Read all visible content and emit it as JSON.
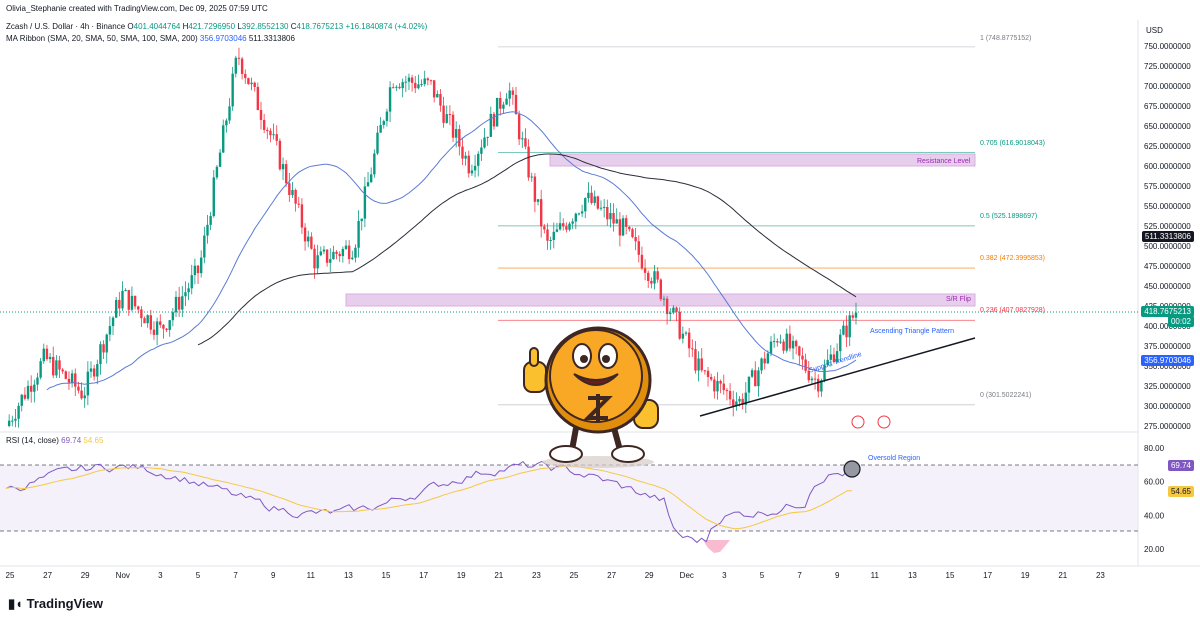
{
  "header": {
    "attribution": "Olivia_Stephanie created with TradingView.com, Dec 09, 2025 07:59 UTC",
    "symbol": "Zcash / U.S. Dollar · 4h · Binance",
    "ohlc": {
      "o_label": "O",
      "o": "401.4044764",
      "h_label": "H",
      "h": "421.7296950",
      "l_label": "L",
      "l": "392.8552130",
      "c_label": "C",
      "c": "418.7675213",
      "change": "+16.1840874 (+4.02%)"
    },
    "ma_ribbon": "MA Ribbon (SMA, 20, SMA, 50, SMA, 100, SMA, 200)",
    "ma_val_1": "356.9703046",
    "ma_val_2": "511.3313806"
  },
  "currency": "USD",
  "price_axis": [
    "750.0000000",
    "725.0000000",
    "700.0000000",
    "675.0000000",
    "650.0000000",
    "625.0000000",
    "600.0000000",
    "575.0000000",
    "550.0000000",
    "525.0000000",
    "500.0000000",
    "475.0000000",
    "450.0000000",
    "425.0000000",
    "400.0000000",
    "375.0000000",
    "350.0000000",
    "325.0000000",
    "300.0000000",
    "275.0000000"
  ],
  "price_tags": {
    "ma200": "511.3313806",
    "last": "418.7675213",
    "countdown": "00:02",
    "ma50": "356.9703046"
  },
  "fib_labels": {
    "f1": "1 (748.8775152)",
    "f705": "0.705 (616.9018043)",
    "f5": "0.5 (525.1898697)",
    "f382": "0.382 (472.3995853)",
    "f236": "0.236 (407.0827928)",
    "f0": "0 (301.5022241)"
  },
  "annotations": {
    "resistance": "Resistance Level",
    "sr_flip": "S/R Flip",
    "ascending": "Ascending Triangle Pattern",
    "support": "Support Trendline",
    "oversold": "Oversold Region"
  },
  "rsi": {
    "title": "RSI (14, close)",
    "v1": "69.74",
    "v2": "54.65",
    "axis": [
      "80.00",
      "60.00",
      "40.00",
      "20.00"
    ],
    "tag1": "69.74",
    "tag2": "54.65"
  },
  "time_axis": [
    "25",
    "27",
    "29",
    "Nov",
    "3",
    "5",
    "7",
    "9",
    "11",
    "13",
    "15",
    "17",
    "19",
    "21",
    "23",
    "25",
    "27",
    "29",
    "Dec",
    "3",
    "5",
    "7",
    "9",
    "11",
    "13",
    "15",
    "17",
    "19",
    "21",
    "23"
  ],
  "brand": "TradingView",
  "colors": {
    "up": "#089981",
    "down": "#f23645",
    "ma50": "#5b7bd5",
    "ma200": "#2a2e39",
    "zone": "#e1bee7",
    "rsi_line": "#7e57c2",
    "rsi_ma": "#f5c842"
  },
  "chart_data": {
    "type": "candlestick",
    "timeframe": "4h",
    "symbol": "Zcash / U.S. Dollar",
    "exchange": "Binance",
    "ylim": [
      275,
      760
    ],
    "key_points": [
      {
        "x": "Oct 25",
        "price": 275
      },
      {
        "x": "Oct 27",
        "price": 360
      },
      {
        "x": "Oct 29",
        "price": 315
      },
      {
        "x": "Nov 1",
        "price": 440
      },
      {
        "x": "Nov 3",
        "price": 395
      },
      {
        "x": "Nov 5",
        "price": 470
      },
      {
        "x": "Nov 7",
        "price": 740
      },
      {
        "x": "Nov 9",
        "price": 620
      },
      {
        "x": "Nov 11",
        "price": 480
      },
      {
        "x": "Nov 13",
        "price": 500
      },
      {
        "x": "Nov 15",
        "price": 710
      },
      {
        "x": "Nov 17",
        "price": 700
      },
      {
        "x": "Nov 19",
        "price": 600
      },
      {
        "x": "Nov 21",
        "price": 700
      },
      {
        "x": "Nov 23",
        "price": 500
      },
      {
        "x": "Nov 25",
        "price": 560
      },
      {
        "x": "Nov 27",
        "price": 520
      },
      {
        "x": "Nov 29",
        "price": 440
      },
      {
        "x": "Dec 1",
        "price": 340
      },
      {
        "x": "Dec 3",
        "price": 305
      },
      {
        "x": "Dec 5",
        "price": 390
      },
      {
        "x": "Dec 7",
        "price": 330
      },
      {
        "x": "Dec 9",
        "price": 418.77
      }
    ],
    "zones": [
      {
        "name": "Resistance Level",
        "from": 600,
        "to": 615
      },
      {
        "name": "S/R Flip",
        "from": 425,
        "to": 440
      }
    ],
    "fib_levels": [
      {
        "ratio": 1,
        "price": 748.8775152
      },
      {
        "ratio": 0.705,
        "price": 616.9018043
      },
      {
        "ratio": 0.5,
        "price": 525.1898697
      },
      {
        "ratio": 0.382,
        "price": 472.3995853
      },
      {
        "ratio": 0.236,
        "price": 407.0827928
      },
      {
        "ratio": 0,
        "price": 301.5022241
      }
    ],
    "rsi": {
      "period": 14,
      "value": 69.74,
      "ma": 54.65,
      "ylim": [
        10,
        90
      ]
    }
  }
}
